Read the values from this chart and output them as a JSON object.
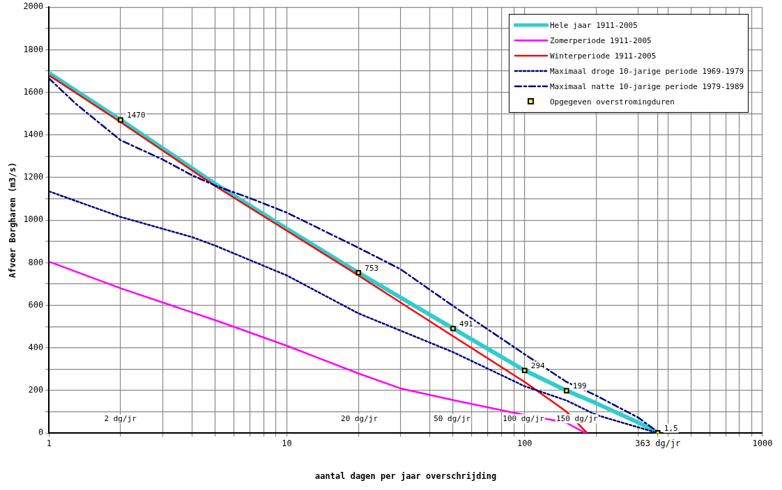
{
  "chart_data": {
    "type": "line",
    "xlabel": "aantal dagen per jaar overschrijding",
    "ylabel": "Afvoer Borgharen (m3/s)",
    "log": "x",
    "grid": true,
    "legend": "top right",
    "xlim": [
      1,
      1000
    ],
    "ylim": [
      0,
      2000
    ],
    "xticks": [
      1,
      {
        "value": 2,
        "label": null
      },
      {
        "value": 3,
        "label": null
      },
      {
        "value": 4,
        "label": null
      },
      {
        "value": 5,
        "label": null
      },
      {
        "value": 6,
        "label": null
      },
      {
        "value": 7,
        "label": null
      },
      {
        "value": 8,
        "label": null
      },
      {
        "value": 9,
        "label": null
      },
      10,
      {
        "value": 20,
        "label": null
      },
      {
        "value": 30,
        "label": null
      },
      {
        "value": 40,
        "label": null
      },
      {
        "value": 50,
        "label": null
      },
      {
        "value": 60,
        "label": null
      },
      {
        "value": 70,
        "label": null
      },
      {
        "value": 80,
        "label": null
      },
      {
        "value": 90,
        "label": null
      },
      100,
      {
        "value": 200,
        "label": null
      },
      {
        "value": 300,
        "label": null
      },
      {
        "value": 363,
        "label": "363 dg/jr"
      },
      {
        "value": 400,
        "label": null
      },
      {
        "value": 500,
        "label": null
      },
      {
        "value": 600,
        "label": null
      },
      {
        "value": 700,
        "label": null
      },
      {
        "value": 800,
        "label": null
      },
      {
        "value": 900,
        "label": null
      },
      1000
    ],
    "yticks": [
      0,
      {
        "value": 100,
        "label": null
      },
      200,
      {
        "value": 300,
        "label": null
      },
      400,
      {
        "value": 500,
        "label": null
      },
      600,
      {
        "value": 700,
        "label": null
      },
      800,
      {
        "value": 900,
        "label": null
      },
      1000,
      {
        "value": 1100,
        "label": null
      },
      1200,
      {
        "value": 1300,
        "label": null
      },
      1400,
      {
        "value": 1500,
        "label": null
      },
      1600,
      {
        "value": 1700,
        "label": null
      },
      1800,
      {
        "value": 1900,
        "label": null
      },
      2000
    ],
    "series": [
      {
        "name": "Hele jaar 1911-2005",
        "color": "#33cccc",
        "line_style": "solid",
        "marker": "none",
        "x": [
          1,
          2,
          5,
          10,
          20,
          50,
          100,
          150,
          200,
          300,
          363
        ],
        "values": [
          1690,
          1470,
          1170,
          960,
          753,
          491,
          294,
          199,
          140,
          50,
          1.5
        ]
      },
      {
        "name": "Zomerperiode 1911-2005",
        "color": "#ff00ff",
        "line_style": "solid",
        "marker": "none",
        "x": [
          1,
          2,
          5,
          10,
          20,
          30,
          50,
          100,
          130,
          150,
          180
        ],
        "values": [
          805,
          680,
          530,
          410,
          280,
          210,
          155,
          85,
          62,
          48,
          0
        ]
      },
      {
        "name": "Winterperiode 1911-2005",
        "color": "#ff0000",
        "line_style": "solid",
        "marker": "none",
        "x": [
          1,
          2,
          5,
          10,
          20,
          50,
          100,
          130,
          150,
          183
        ],
        "values": [
          1680,
          1460,
          1160,
          950,
          740,
          455,
          240,
          150,
          100,
          0
        ]
      },
      {
        "name": "Maximaal droge 10-jarige periode 1969-1979",
        "color": "#000080",
        "line_style": "dotted",
        "marker": "none",
        "x": [
          1,
          2,
          4,
          5,
          10,
          20,
          50,
          100,
          150,
          200,
          363
        ],
        "values": [
          1135,
          1015,
          920,
          880,
          740,
          562,
          380,
          220,
          153,
          85,
          0
        ]
      },
      {
        "name": "Maximaal natte 10-jarige periode 1979-1989",
        "color": "#000080",
        "line_style": "dashed",
        "marker": "none",
        "x": [
          1,
          1.3,
          2,
          3,
          4,
          5,
          7,
          10,
          20,
          30,
          50,
          100,
          150,
          200,
          300,
          363
        ],
        "values": [
          1665,
          1545,
          1375,
          1285,
          1210,
          1162,
          1103,
          1035,
          870,
          770,
          597,
          370,
          240,
          176,
          73,
          5
        ]
      },
      {
        "name": "Opgegeven overstromingduren",
        "type": "scatter",
        "color": "#000000",
        "marker": "square",
        "x": [
          2,
          20,
          50,
          100,
          150,
          363
        ],
        "values": [
          1470,
          753,
          491,
          294,
          199,
          1.5
        ],
        "value_labels": [
          "1470",
          "753",
          "491",
          "294",
          "199",
          "1,5"
        ]
      }
    ],
    "annotations": [
      "2 dg/jr",
      "20 dg/jr",
      "50 dg/jr",
      "100 dg/jr",
      "150 dg/jr"
    ]
  }
}
